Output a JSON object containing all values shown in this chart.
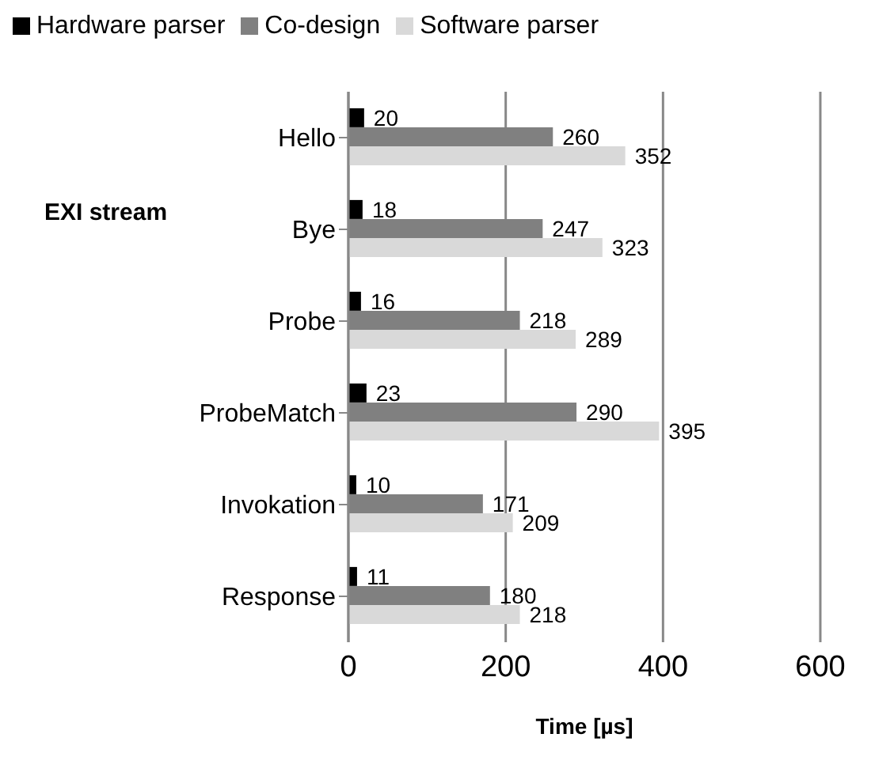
{
  "chart_data": {
    "type": "bar",
    "orientation": "horizontal",
    "ylabel": "EXI stream",
    "xlabel": "Time [µs]",
    "categories": [
      "Hello",
      "Bye",
      "Probe",
      "ProbeMatch",
      "Invokation",
      "Response"
    ],
    "series": [
      {
        "name": "Hardware parser",
        "color": "#000000",
        "values": [
          20,
          18,
          16,
          23,
          10,
          11
        ]
      },
      {
        "name": "Co-design",
        "color": "#808080",
        "values": [
          260,
          247,
          218,
          290,
          171,
          180
        ]
      },
      {
        "name": "Software parser",
        "color": "#d9d9d9",
        "values": [
          352,
          323,
          289,
          395,
          209,
          218
        ]
      }
    ],
    "xlim": [
      0,
      600
    ],
    "xticks": [
      0,
      200,
      400,
      600
    ],
    "grid": "x",
    "legend": "top",
    "data_labels": true
  }
}
